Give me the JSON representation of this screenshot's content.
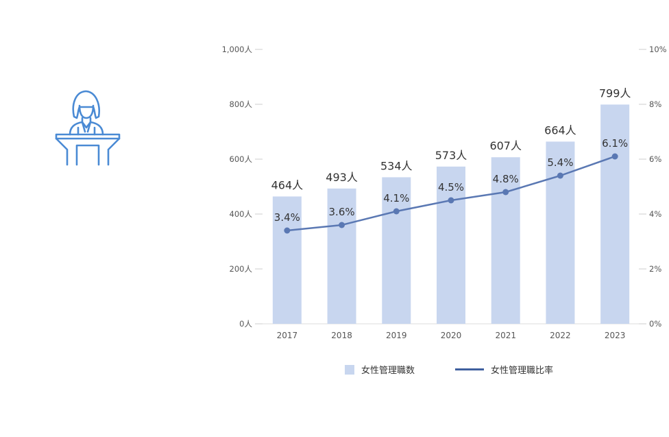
{
  "colors": {
    "bar": "#c8d6ef",
    "line": "#5a78b3",
    "legend_line": "#3f5f9e",
    "icon": "#4a8ad4",
    "axis_text": "#555555",
    "label_text": "#333333",
    "tick": "#cccccc"
  },
  "icon": {
    "name": "speaker-at-podium-icon"
  },
  "chart_data": {
    "type": "bar",
    "categories": [
      "2017",
      "2018",
      "2019",
      "2020",
      "2021",
      "2022",
      "2023"
    ],
    "series": [
      {
        "name": "女性管理職数",
        "type": "bar",
        "axis": "left",
        "values": [
          464,
          493,
          534,
          573,
          607,
          664,
          799
        ],
        "labels": [
          "464人",
          "493人",
          "534人",
          "573人",
          "607人",
          "664人",
          "799人"
        ]
      },
      {
        "name": "女性管理職比率",
        "type": "line",
        "axis": "right",
        "values": [
          3.4,
          3.6,
          4.1,
          4.5,
          4.8,
          5.4,
          6.1
        ],
        "labels": [
          "3.4%",
          "3.6%",
          "4.1%",
          "4.5%",
          "4.8%",
          "5.4%",
          "6.1%"
        ]
      }
    ],
    "y_left": {
      "ylim": [
        0,
        1000
      ],
      "ticks": [
        0,
        200,
        400,
        600,
        800,
        1000
      ],
      "tick_labels": [
        "0人",
        "200人",
        "400人",
        "600人",
        "800人",
        "1,000人"
      ]
    },
    "y_right": {
      "ylim": [
        0,
        10
      ],
      "ticks": [
        0,
        2,
        4,
        6,
        8,
        10
      ],
      "tick_labels": [
        "0%",
        "2%",
        "4%",
        "6%",
        "8%",
        "10%"
      ]
    },
    "grid": false,
    "legend_position": "bottom"
  },
  "legend": {
    "bar_label": "女性管理職数",
    "line_label": "女性管理職比率"
  }
}
